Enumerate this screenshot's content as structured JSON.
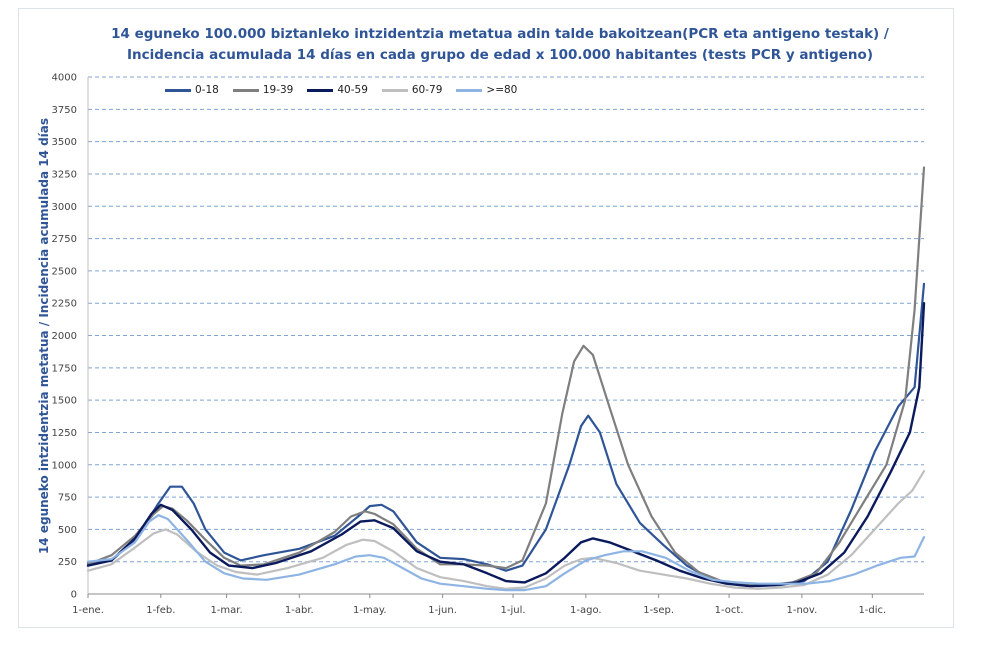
{
  "chart_data": {
    "type": "line",
    "title": "14 eguneko 100.000 biztanleko intzidentzia metatua adin talde bakoitzean(PCR eta antigeno testak) /",
    "subtitle": "Incidencia acumulada 14 días en cada grupo de edad x 100.000 habitantes (tests PCR y antigeno)",
    "ylabel": "14 eguneko intzidentzia metatua / Incidencia acumulada 14 días",
    "xlabel": "",
    "ylim": [
      0,
      4000
    ],
    "yticks": [
      0,
      250,
      500,
      750,
      1000,
      1250,
      1500,
      1750,
      2000,
      2250,
      2500,
      2750,
      3000,
      3250,
      3500,
      3750,
      4000
    ],
    "xlim": [
      0,
      356
    ],
    "xticks": [
      {
        "x": 0,
        "label": "1-ene."
      },
      {
        "x": 31,
        "label": "1-feb."
      },
      {
        "x": 59,
        "label": "1-mar."
      },
      {
        "x": 90,
        "label": "1-abr."
      },
      {
        "x": 120,
        "label": "1-may."
      },
      {
        "x": 151,
        "label": "1-jun."
      },
      {
        "x": 181,
        "label": "1-jul."
      },
      {
        "x": 212,
        "label": "1-ago."
      },
      {
        "x": 243,
        "label": "1-sep."
      },
      {
        "x": 273,
        "label": "1-oct."
      },
      {
        "x": 304,
        "label": "1-nov."
      },
      {
        "x": 334,
        "label": "1-dic."
      }
    ],
    "grid": "horizontal-dashed",
    "legend_position": "top-left",
    "series": [
      {
        "name": "0-18",
        "color": "#2f5597",
        "width": 2.2,
        "points": [
          [
            0,
            240
          ],
          [
            10,
            260
          ],
          [
            20,
            420
          ],
          [
            30,
            700
          ],
          [
            35,
            830
          ],
          [
            40,
            830
          ],
          [
            45,
            700
          ],
          [
            50,
            500
          ],
          [
            58,
            320
          ],
          [
            65,
            260
          ],
          [
            75,
            300
          ],
          [
            90,
            350
          ],
          [
            105,
            450
          ],
          [
            115,
            600
          ],
          [
            120,
            680
          ],
          [
            125,
            690
          ],
          [
            130,
            640
          ],
          [
            140,
            400
          ],
          [
            150,
            280
          ],
          [
            160,
            270
          ],
          [
            170,
            230
          ],
          [
            178,
            180
          ],
          [
            185,
            220
          ],
          [
            195,
            500
          ],
          [
            205,
            1000
          ],
          [
            210,
            1300
          ],
          [
            213,
            1380
          ],
          [
            218,
            1250
          ],
          [
            225,
            850
          ],
          [
            235,
            550
          ],
          [
            245,
            380
          ],
          [
            255,
            220
          ],
          [
            265,
            120
          ],
          [
            275,
            80
          ],
          [
            285,
            60
          ],
          [
            295,
            70
          ],
          [
            305,
            100
          ],
          [
            315,
            250
          ],
          [
            325,
            650
          ],
          [
            335,
            1100
          ],
          [
            345,
            1450
          ],
          [
            352,
            1600
          ],
          [
            356,
            2400
          ]
        ]
      },
      {
        "name": "19-39",
        "color": "#7f7f7f",
        "width": 2.2,
        "points": [
          [
            0,
            230
          ],
          [
            10,
            300
          ],
          [
            20,
            450
          ],
          [
            28,
            620
          ],
          [
            32,
            680
          ],
          [
            36,
            660
          ],
          [
            42,
            570
          ],
          [
            50,
            420
          ],
          [
            58,
            280
          ],
          [
            65,
            220
          ],
          [
            75,
            230
          ],
          [
            90,
            320
          ],
          [
            105,
            480
          ],
          [
            112,
            600
          ],
          [
            118,
            640
          ],
          [
            122,
            620
          ],
          [
            130,
            540
          ],
          [
            140,
            350
          ],
          [
            150,
            230
          ],
          [
            160,
            230
          ],
          [
            170,
            220
          ],
          [
            178,
            200
          ],
          [
            185,
            260
          ],
          [
            195,
            700
          ],
          [
            202,
            1400
          ],
          [
            207,
            1800
          ],
          [
            211,
            1920
          ],
          [
            215,
            1850
          ],
          [
            222,
            1450
          ],
          [
            230,
            1000
          ],
          [
            240,
            600
          ],
          [
            250,
            320
          ],
          [
            260,
            170
          ],
          [
            270,
            100
          ],
          [
            280,
            70
          ],
          [
            290,
            70
          ],
          [
            300,
            90
          ],
          [
            310,
            160
          ],
          [
            320,
            400
          ],
          [
            330,
            700
          ],
          [
            340,
            1000
          ],
          [
            348,
            1500
          ],
          [
            352,
            2200
          ],
          [
            356,
            3300
          ]
        ]
      },
      {
        "name": "40-59",
        "color": "#0b1a5c",
        "width": 2.4,
        "points": [
          [
            0,
            220
          ],
          [
            10,
            260
          ],
          [
            20,
            430
          ],
          [
            27,
            620
          ],
          [
            31,
            690
          ],
          [
            36,
            650
          ],
          [
            44,
            500
          ],
          [
            52,
            320
          ],
          [
            60,
            220
          ],
          [
            70,
            200
          ],
          [
            80,
            240
          ],
          [
            95,
            330
          ],
          [
            108,
            460
          ],
          [
            116,
            560
          ],
          [
            122,
            570
          ],
          [
            130,
            510
          ],
          [
            140,
            330
          ],
          [
            150,
            250
          ],
          [
            160,
            230
          ],
          [
            170,
            160
          ],
          [
            178,
            100
          ],
          [
            186,
            90
          ],
          [
            195,
            160
          ],
          [
            203,
            280
          ],
          [
            210,
            400
          ],
          [
            215,
            430
          ],
          [
            222,
            400
          ],
          [
            232,
            330
          ],
          [
            242,
            260
          ],
          [
            252,
            180
          ],
          [
            262,
            120
          ],
          [
            272,
            80
          ],
          [
            282,
            60
          ],
          [
            292,
            70
          ],
          [
            302,
            90
          ],
          [
            312,
            160
          ],
          [
            322,
            320
          ],
          [
            332,
            600
          ],
          [
            342,
            950
          ],
          [
            350,
            1250
          ],
          [
            354,
            1600
          ],
          [
            356,
            2250
          ]
        ]
      },
      {
        "name": "60-79",
        "color": "#bfbfbf",
        "width": 2.2,
        "points": [
          [
            0,
            180
          ],
          [
            10,
            230
          ],
          [
            20,
            360
          ],
          [
            28,
            470
          ],
          [
            33,
            500
          ],
          [
            38,
            460
          ],
          [
            46,
            330
          ],
          [
            55,
            220
          ],
          [
            63,
            170
          ],
          [
            72,
            150
          ],
          [
            85,
            200
          ],
          [
            100,
            280
          ],
          [
            110,
            380
          ],
          [
            117,
            420
          ],
          [
            122,
            410
          ],
          [
            130,
            330
          ],
          [
            140,
            200
          ],
          [
            150,
            130
          ],
          [
            160,
            100
          ],
          [
            170,
            60
          ],
          [
            178,
            40
          ],
          [
            186,
            50
          ],
          [
            195,
            120
          ],
          [
            203,
            220
          ],
          [
            210,
            270
          ],
          [
            215,
            280
          ],
          [
            225,
            240
          ],
          [
            235,
            180
          ],
          [
            245,
            150
          ],
          [
            255,
            120
          ],
          [
            265,
            80
          ],
          [
            275,
            50
          ],
          [
            285,
            40
          ],
          [
            295,
            50
          ],
          [
            305,
            70
          ],
          [
            315,
            150
          ],
          [
            325,
            300
          ],
          [
            335,
            500
          ],
          [
            345,
            700
          ],
          [
            351,
            800
          ],
          [
            356,
            950
          ]
        ]
      },
      {
        "name": ">=80",
        "color": "#8eb4e3",
        "width": 2.2,
        "points": [
          [
            0,
            250
          ],
          [
            10,
            270
          ],
          [
            20,
            400
          ],
          [
            26,
            560
          ],
          [
            30,
            610
          ],
          [
            34,
            580
          ],
          [
            42,
            420
          ],
          [
            50,
            250
          ],
          [
            58,
            160
          ],
          [
            66,
            120
          ],
          [
            76,
            110
          ],
          [
            90,
            150
          ],
          [
            105,
            230
          ],
          [
            114,
            290
          ],
          [
            120,
            300
          ],
          [
            126,
            280
          ],
          [
            134,
            200
          ],
          [
            142,
            120
          ],
          [
            150,
            80
          ],
          [
            160,
            60
          ],
          [
            170,
            40
          ],
          [
            178,
            30
          ],
          [
            186,
            30
          ],
          [
            195,
            60
          ],
          [
            203,
            160
          ],
          [
            212,
            260
          ],
          [
            220,
            300
          ],
          [
            228,
            330
          ],
          [
            236,
            330
          ],
          [
            246,
            280
          ],
          [
            256,
            180
          ],
          [
            266,
            110
          ],
          [
            276,
            90
          ],
          [
            286,
            80
          ],
          [
            296,
            80
          ],
          [
            306,
            80
          ],
          [
            316,
            100
          ],
          [
            326,
            150
          ],
          [
            336,
            220
          ],
          [
            346,
            280
          ],
          [
            352,
            290
          ],
          [
            356,
            440
          ]
        ]
      }
    ]
  }
}
